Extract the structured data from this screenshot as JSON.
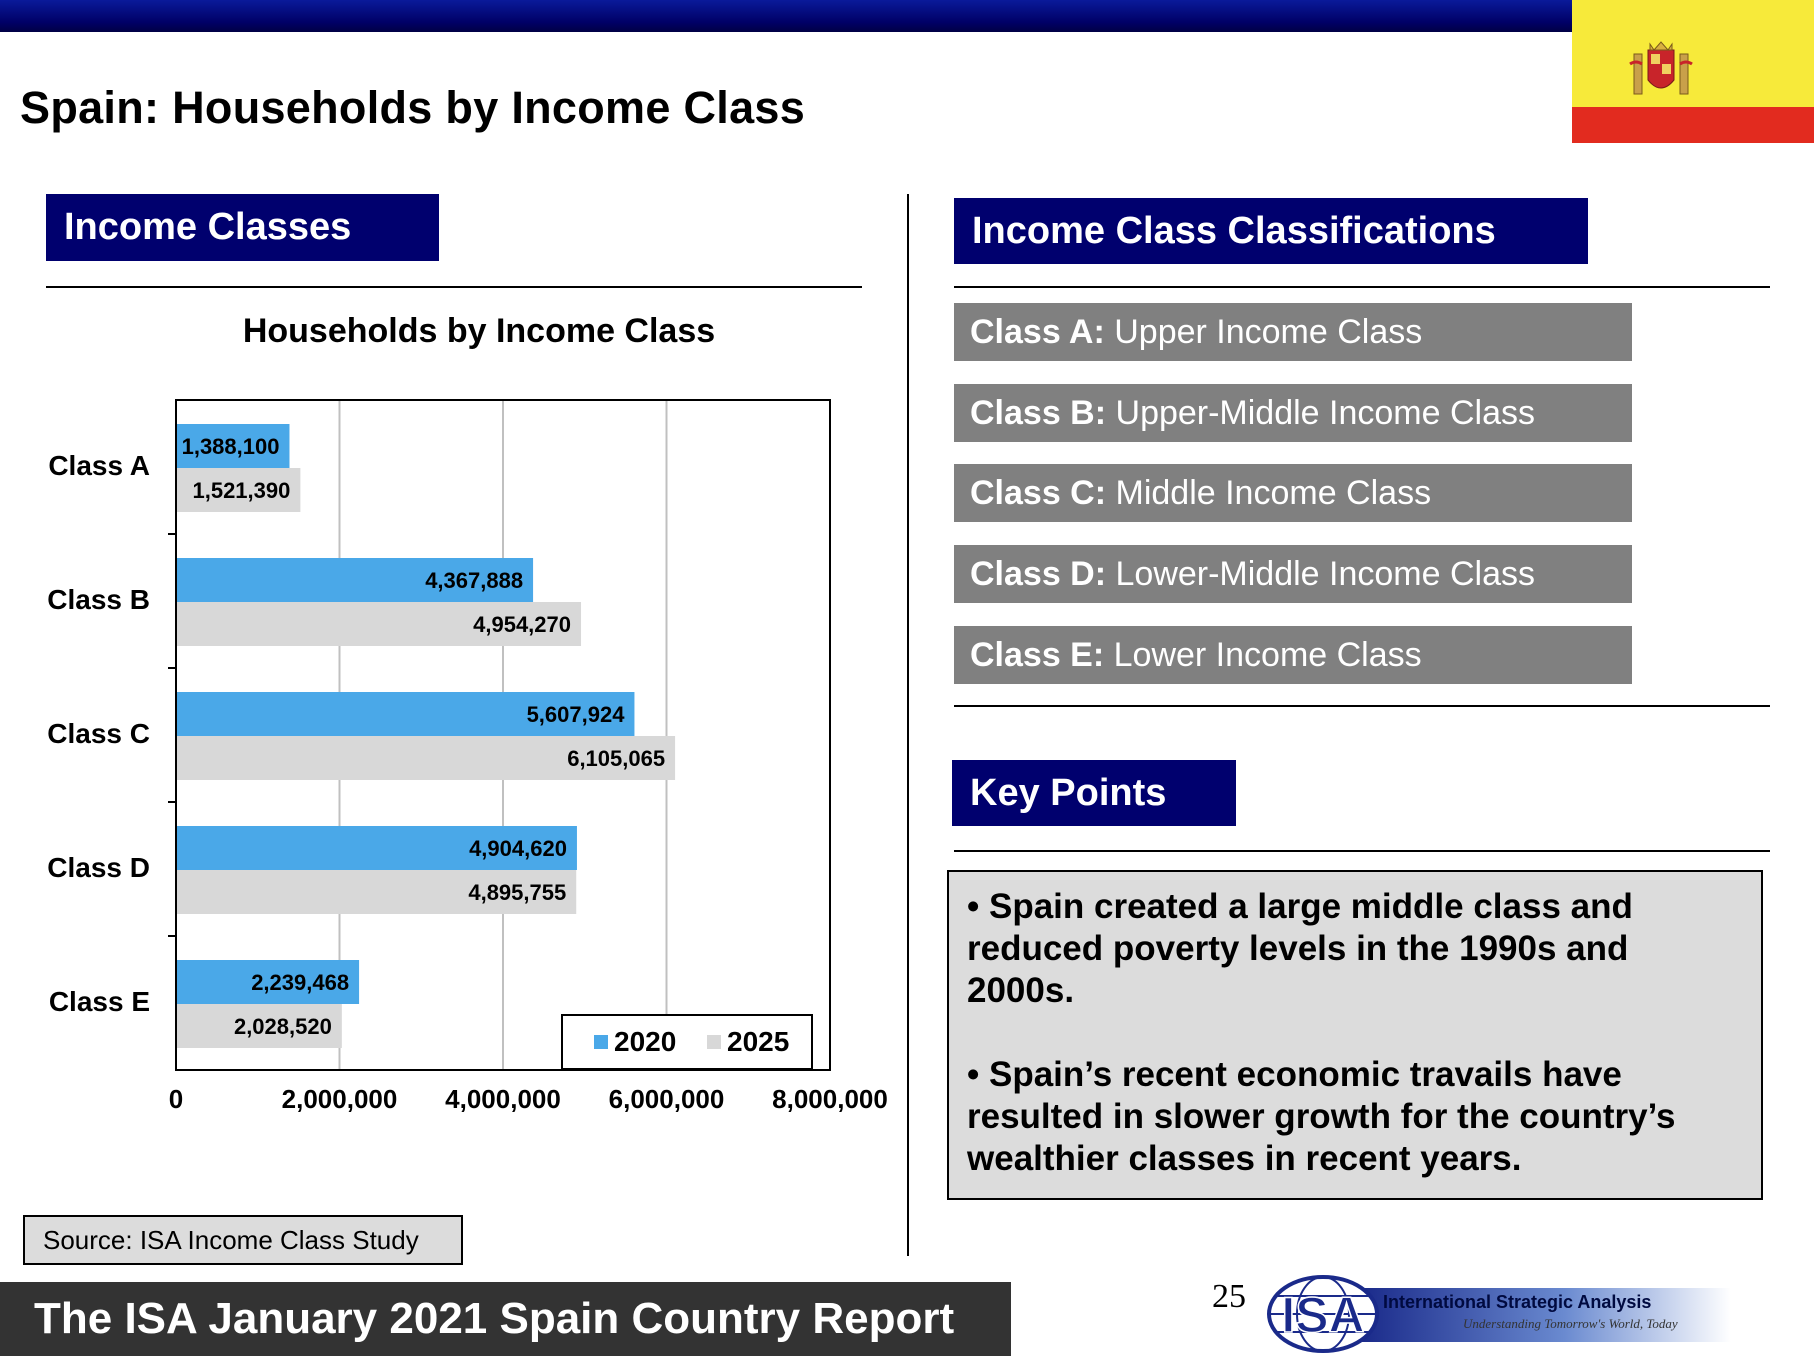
{
  "page": {
    "title": "Spain: Households by Income Class",
    "page_number": "25",
    "footer": "The ISA January 2021 Spain Country Report",
    "source": "Source: ISA Income Class Study"
  },
  "left_panel": {
    "header": "Income Classes"
  },
  "chart_data": {
    "type": "bar",
    "orientation": "horizontal",
    "title": "Households by Income Class",
    "categories": [
      "Class A",
      "Class B",
      "Class C",
      "Class D",
      "Class E"
    ],
    "series": [
      {
        "name": "2020",
        "values": [
          1388100,
          4367888,
          5607924,
          4904620,
          2239468
        ],
        "labels": [
          "1,388,100",
          "4,367,888",
          "5,607,924",
          "4,904,620",
          "2,239,468"
        ],
        "color": "#4aa8e8"
      },
      {
        "name": "2025",
        "values": [
          1521390,
          4954270,
          6105065,
          4895755,
          2028520
        ],
        "labels": [
          "1,521,390",
          "4,954,270",
          "6,105,065",
          "4,895,755",
          "2,028,520"
        ],
        "color": "#d8d8d8"
      }
    ],
    "xlim": [
      0,
      8000000
    ],
    "xticks": [
      0,
      2000000,
      4000000,
      6000000,
      8000000
    ],
    "xtick_labels": [
      "0",
      "2,000,000",
      "4,000,000",
      "6,000,000",
      "8,000,000"
    ],
    "grid": "vertical",
    "legend": "bottom-right"
  },
  "right_panel": {
    "header": "Income Class Classifications",
    "classes": [
      {
        "code": "Class A:",
        "desc": " Upper Income Class"
      },
      {
        "code": "Class B:",
        "desc": " Upper-Middle Income Class"
      },
      {
        "code": "Class C:",
        "desc": " Middle Income Class"
      },
      {
        "code": "Class D:",
        "desc": " Lower-Middle Income Class"
      },
      {
        "code": "Class E:",
        "desc": " Lower Income Class"
      }
    ],
    "key_points_header": "Key Points",
    "key_points": [
      "• Spain created a large middle class and reduced poverty levels in the 1990s and 2000s.",
      "• Spain’s recent economic travails have resulted in slower growth for the country’s wealthier classes in recent years."
    ]
  },
  "logo": {
    "mark": "ISA",
    "name": "International Strategic Analysis",
    "tagline": "Understanding Tomorrow's World, Today"
  },
  "colors": {
    "navy": "#00006e",
    "bar_2020": "#4aa8e8",
    "bar_2025": "#d8d8d8",
    "class_row_bg": "#808080",
    "flag_red": "#e22b1f",
    "flag_yellow": "#f7ea3a"
  }
}
